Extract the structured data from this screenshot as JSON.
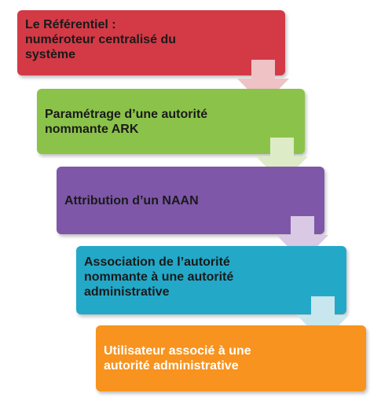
{
  "steps": [
    {
      "label": "Le Référentiel :\nnuméroteur centralisé du\nsystème",
      "color": "#D33A46",
      "text_color": "#1a1a1a"
    },
    {
      "label": "Paramétrage  d’une autorité\nnommante ARK",
      "color": "#8BC34A",
      "text_color": "#1a1a1a"
    },
    {
      "label": "Attribution d’un NAAN",
      "color": "#7E57A9",
      "text_color": "#1a1a1a"
    },
    {
      "label": "Association de l’autorité\nnommante à une autorité\nadministrative",
      "color": "#23A8C8",
      "text_color": "#1a1a1a"
    },
    {
      "label": "Utilisateur associé à une\nautorité administrative",
      "color": "#F7931E",
      "text_color": "#ffffff"
    }
  ],
  "arrow_colors": [
    "#EFC2C6",
    "#DDEBC7",
    "#D9C9E4",
    "#C8E6EE"
  ]
}
